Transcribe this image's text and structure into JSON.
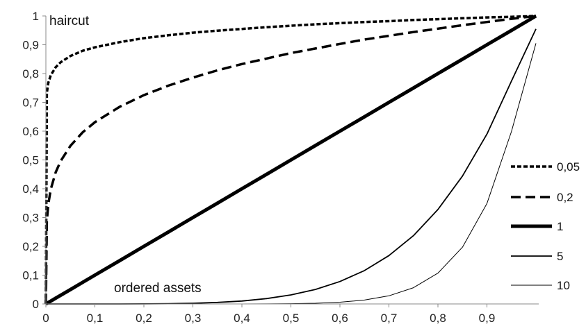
{
  "chart_data": {
    "type": "line",
    "title": "",
    "xlabel": "",
    "ylabel": "",
    "xlim": [
      0,
      1
    ],
    "ylim": [
      0,
      1
    ],
    "grid": false,
    "legend_placement": "right",
    "annotations": {
      "y_axis_note": "haircut",
      "x_axis_note": "ordered assets"
    },
    "x_ticks": [
      "0",
      "0,1",
      "0,2",
      "0,3",
      "0,4",
      "0,5",
      "0,6",
      "0,7",
      "0,8",
      "0,9"
    ],
    "y_ticks": [
      "0",
      "0,1",
      "0,2",
      "0,3",
      "0,4",
      "0,5",
      "0,6",
      "0,7",
      "0,8",
      "0,9",
      "1"
    ],
    "x": [
      0,
      0.002,
      0.005,
      0.01,
      0.02,
      0.03,
      0.05,
      0.075,
      0.1,
      0.15,
      0.2,
      0.25,
      0.3,
      0.35,
      0.4,
      0.45,
      0.5,
      0.55,
      0.6,
      0.65,
      0.7,
      0.75,
      0.8,
      0.85,
      0.9,
      0.95,
      1.0
    ],
    "series": [
      {
        "name": "0,05",
        "line_style": "dotted-dash",
        "stroke_width": 3.5,
        "values": [
          0,
          0.733,
          0.768,
          0.794,
          0.822,
          0.839,
          0.861,
          0.879,
          0.891,
          0.909,
          0.923,
          0.933,
          0.942,
          0.949,
          0.955,
          0.961,
          0.966,
          0.971,
          0.975,
          0.979,
          0.982,
          0.986,
          0.989,
          0.992,
          0.995,
          0.997,
          1.0
        ]
      },
      {
        "name": "0,2",
        "line_style": "long-dash",
        "stroke_width": 3.5,
        "values": [
          0,
          0.288,
          0.346,
          0.398,
          0.457,
          0.496,
          0.549,
          0.596,
          0.631,
          0.684,
          0.725,
          0.758,
          0.786,
          0.811,
          0.833,
          0.852,
          0.871,
          0.887,
          0.903,
          0.918,
          0.931,
          0.944,
          0.956,
          0.968,
          0.979,
          0.99,
          1.0
        ]
      },
      {
        "name": "1",
        "line_style": "solid",
        "stroke_width": 5,
        "values": [
          0,
          0.002,
          0.005,
          0.01,
          0.02,
          0.03,
          0.05,
          0.075,
          0.1,
          0.15,
          0.2,
          0.25,
          0.3,
          0.35,
          0.4,
          0.45,
          0.5,
          0.55,
          0.6,
          0.65,
          0.7,
          0.75,
          0.8,
          0.85,
          0.9,
          0.95,
          1.0
        ]
      },
      {
        "name": "5",
        "line_style": "solid",
        "stroke_width": 1.8,
        "values": [
          0,
          0,
          0,
          0,
          0,
          0,
          0,
          0,
          0,
          0.0001,
          0.0003,
          0.001,
          0.0024,
          0.0053,
          0.0102,
          0.0185,
          0.0313,
          0.0503,
          0.0778,
          0.116,
          0.168,
          0.237,
          0.328,
          0.444,
          0.59,
          0.774,
          0.955
        ]
      },
      {
        "name": "10",
        "line_style": "solid",
        "stroke_width": 1.0,
        "values": [
          0,
          0,
          0,
          0,
          0,
          0,
          0,
          0,
          0,
          0,
          0,
          0,
          0,
          0,
          0.0001,
          0.0003,
          0.001,
          0.0025,
          0.006,
          0.0135,
          0.0282,
          0.0563,
          0.107,
          0.197,
          0.349,
          0.599,
          0.905
        ]
      }
    ]
  }
}
